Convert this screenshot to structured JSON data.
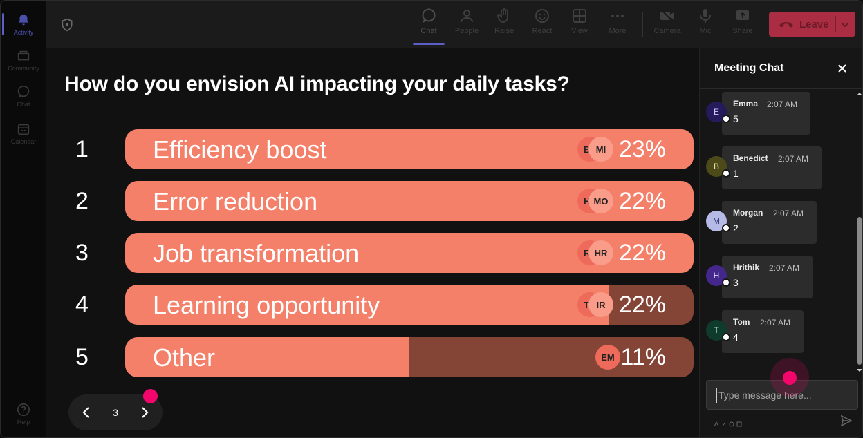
{
  "rail": {
    "items": [
      {
        "label": "Activity",
        "icon": "bell-icon"
      },
      {
        "label": "Community",
        "icon": "community-icon"
      },
      {
        "label": "Chat",
        "icon": "chat-icon"
      },
      {
        "label": "Calendar",
        "icon": "calendar-icon"
      },
      {
        "label": "Help",
        "icon": "help-icon"
      }
    ]
  },
  "toolbar": {
    "chat": "Chat",
    "people": "People",
    "raise": "Raise",
    "react": "React",
    "view": "View",
    "more": "More",
    "camera": "Camera",
    "mic": "Mic",
    "share": "Share",
    "leave": "Leave"
  },
  "poll": {
    "question": "How do you envision AI impacting your daily tasks?",
    "options": [
      {
        "num": "1",
        "label": "Efficiency boost",
        "percent_text": "23%",
        "percent": 23,
        "fill_fraction": 1.0,
        "voters": [
          "BE",
          "MI"
        ]
      },
      {
        "num": "2",
        "label": "Error reduction",
        "percent_text": "22%",
        "percent": 22,
        "fill_fraction": 1.0,
        "voters": [
          "HE",
          "MO"
        ]
      },
      {
        "num": "3",
        "label": "Job transformation",
        "percent_text": "22%",
        "percent": 22,
        "fill_fraction": 1.0,
        "voters": [
          "RC",
          "HR"
        ]
      },
      {
        "num": "4",
        "label": "Learning opportunity",
        "percent_text": "22%",
        "percent": 22,
        "fill_fraction": 0.85,
        "voters": [
          "TC",
          "IR"
        ]
      },
      {
        "num": "5",
        "label": "Other",
        "percent_text": "11%",
        "percent": 11,
        "fill_fraction": 0.5,
        "voters": [
          "EM"
        ]
      }
    ],
    "page": "3"
  },
  "chat": {
    "title": "Meeting Chat",
    "messages": [
      {
        "initial": "E",
        "name": "Emma",
        "time": "2:07 AM",
        "text": "5",
        "avatar_bg": "#241a5c",
        "avatar_fg": "#d0c8ff"
      },
      {
        "initial": "B",
        "name": "Benedict",
        "time": "2:07 AM",
        "text": "1",
        "avatar_bg": "#4b4a18",
        "avatar_fg": "#e6e3a8"
      },
      {
        "initial": "M",
        "name": "Morgan",
        "time": "2:07 AM",
        "text": "2",
        "avatar_bg": "#b6bae6",
        "avatar_fg": "#3a3f7a"
      },
      {
        "initial": "H",
        "name": "Hrithik",
        "time": "2:07 AM",
        "text": "3",
        "avatar_bg": "#43278a",
        "avatar_fg": "#e0d6ff"
      },
      {
        "initial": "T",
        "name": "Tom",
        "time": "2:07 AM",
        "text": "4",
        "avatar_bg": "#0f3b2c",
        "avatar_fg": "#bfe8d6"
      }
    ],
    "input_placeholder": "Type message here..."
  },
  "colors": {
    "bar_fill": "#f4806a",
    "bar_track": "#844536",
    "accent": "#5b5fc7",
    "leave": "#c4314b",
    "cursor_dot": "#f2066c"
  }
}
